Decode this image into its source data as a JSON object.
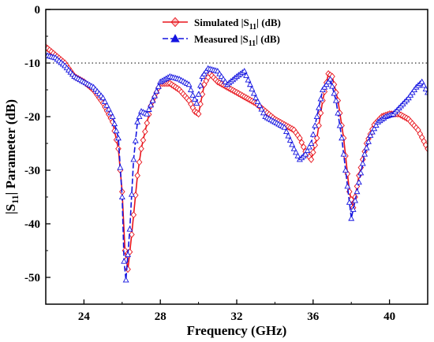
{
  "chart_data": {
    "type": "line",
    "xlabel": "Frequency (GHz)",
    "ylabel": "|S11| Parameter (dB)",
    "ylabel_main": "|S",
    "ylabel_sub": "11",
    "ylabel_rest": "| Parameter (dB)",
    "xlim": [
      22,
      42
    ],
    "ylim": [
      -55,
      0
    ],
    "xticks": [
      24,
      28,
      32,
      36,
      40
    ],
    "yticks": [
      0,
      -10,
      -20,
      -30,
      -40,
      -50
    ],
    "reference_line": {
      "y": -10,
      "style": "dotted"
    },
    "grid": false,
    "legend_position": "top-center",
    "legend": [
      {
        "main": "Simulated |S",
        "sub": "11",
        "rest": "| (dB)"
      },
      {
        "main": "Measured |S",
        "sub": "11",
        "rest": "| (dB)"
      }
    ],
    "series": [
      {
        "name": "Simulated |S11| (dB)",
        "color": "#e8141c",
        "marker": "diamond-open",
        "x": [
          22.0,
          22.5,
          23.0,
          23.5,
          24.0,
          24.5,
          25.0,
          25.5,
          25.8,
          26.0,
          26.15,
          26.3,
          26.5,
          26.8,
          27.0,
          27.5,
          28.0,
          28.5,
          29.0,
          29.5,
          29.8,
          30.0,
          30.3,
          30.6,
          31.0,
          31.5,
          32.0,
          32.5,
          33.0,
          33.5,
          34.0,
          34.5,
          35.0,
          35.3,
          35.6,
          35.9,
          36.2,
          36.5,
          36.8,
          37.0,
          37.3,
          37.6,
          37.9,
          38.1,
          38.4,
          38.8,
          39.2,
          39.6,
          40.0,
          40.5,
          41.0,
          41.5,
          42.0
        ],
        "y": [
          -7.0,
          -8.5,
          -10.0,
          -12.5,
          -13.5,
          -15.0,
          -17.5,
          -21.0,
          -26.0,
          -34.0,
          -45.0,
          -48.5,
          -42.0,
          -31.0,
          -26.0,
          -18.0,
          -13.8,
          -13.8,
          -15.0,
          -17.0,
          -19.0,
          -19.5,
          -14.0,
          -12.0,
          -13.5,
          -14.5,
          -15.5,
          -16.5,
          -17.5,
          -19.0,
          -20.5,
          -21.5,
          -22.5,
          -24.0,
          -26.5,
          -28.0,
          -24.0,
          -17.0,
          -12.0,
          -12.5,
          -17.0,
          -24.0,
          -34.0,
          -37.0,
          -31.0,
          -25.0,
          -21.5,
          -20.0,
          -19.5,
          -19.5,
          -20.5,
          -22.5,
          -26.0
        ]
      },
      {
        "name": "Measured |S11| (dB)",
        "color": "#1414e0",
        "marker": "triangle-open",
        "x": [
          22.0,
          22.5,
          23.0,
          23.5,
          24.0,
          24.5,
          25.0,
          25.5,
          25.8,
          26.0,
          26.1,
          26.2,
          26.4,
          26.6,
          26.8,
          27.0,
          27.3,
          27.6,
          28.0,
          28.5,
          29.0,
          29.5,
          29.7,
          29.9,
          30.2,
          30.5,
          31.0,
          31.5,
          32.0,
          32.4,
          33.0,
          33.5,
          34.0,
          34.5,
          35.0,
          35.3,
          35.6,
          35.9,
          36.2,
          36.5,
          36.9,
          37.2,
          37.5,
          37.8,
          38.0,
          38.3,
          38.7,
          39.0,
          39.4,
          39.8,
          40.2,
          40.6,
          41.0,
          41.4,
          41.7,
          42.0
        ],
        "y": [
          -8.5,
          -9.0,
          -10.5,
          -12.5,
          -13.5,
          -14.5,
          -16.5,
          -20.0,
          -24.0,
          -35.0,
          -47.0,
          -50.5,
          -41.0,
          -28.0,
          -21.0,
          -19.0,
          -19.5,
          -17.0,
          -13.5,
          -12.5,
          -13.0,
          -14.0,
          -16.0,
          -17.5,
          -12.5,
          -11.0,
          -11.5,
          -14.0,
          -12.5,
          -11.5,
          -16.5,
          -20.0,
          -21.0,
          -22.0,
          -26.0,
          -28.0,
          -27.0,
          -25.0,
          -20.0,
          -15.0,
          -13.0,
          -17.0,
          -24.0,
          -33.0,
          -39.0,
          -34.0,
          -27.0,
          -23.5,
          -21.0,
          -20.0,
          -19.5,
          -18.0,
          -16.5,
          -14.5,
          -13.5,
          -15.5
        ]
      }
    ]
  }
}
